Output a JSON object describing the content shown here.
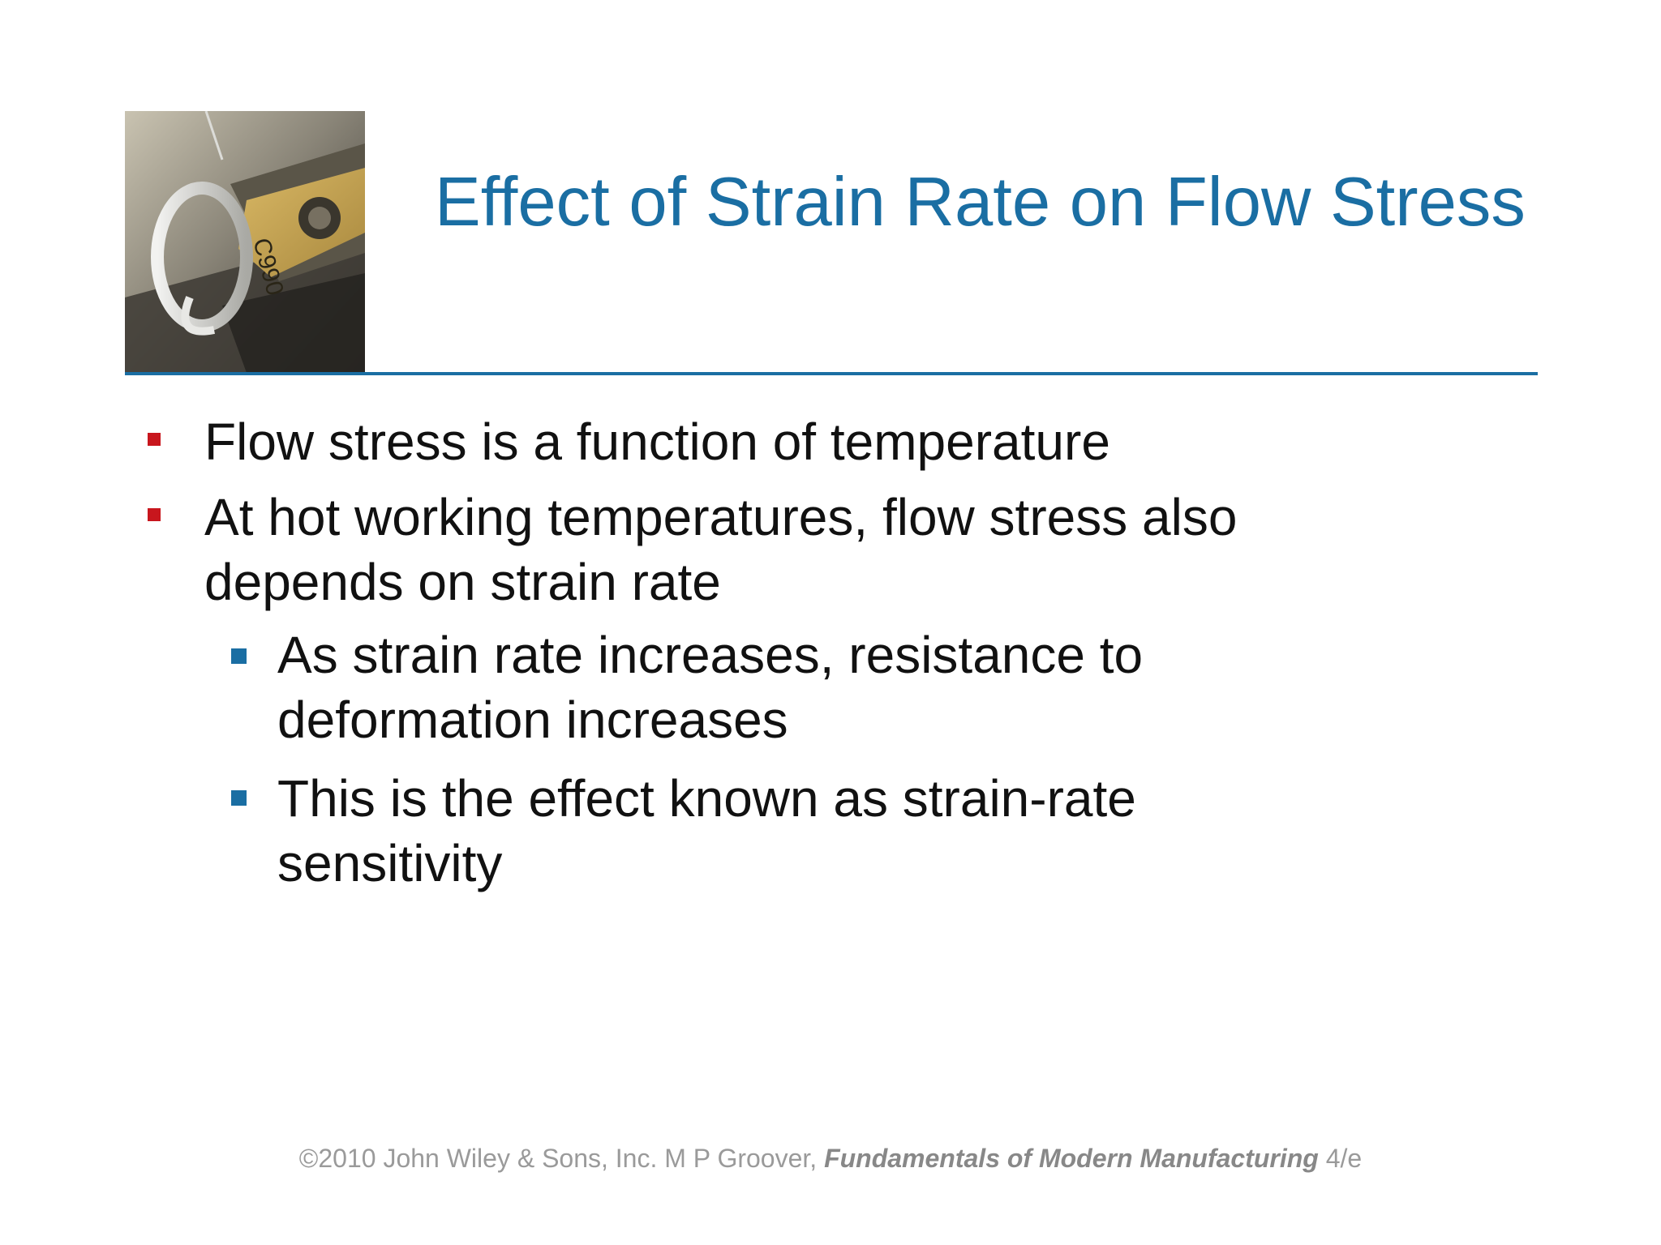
{
  "slide": {
    "title": "Effect of Strain Rate on Flow Stress",
    "photo_icon": "machining-tool-photo",
    "bullets": [
      {
        "level": 1,
        "text": "Flow stress is a function of temperature"
      },
      {
        "level": 1,
        "text": "At hot working temperatures, flow stress also depends on strain rate"
      },
      {
        "level": 2,
        "text": "As strain rate increases, resistance to deformation increases"
      },
      {
        "level": 2,
        "text": "This is the effect known as strain-rate sensitivity"
      }
    ],
    "footer": {
      "prefix": "©2010 John Wiley & Sons, Inc.  M P Groover, ",
      "book": "Fundamentals of Modern Manufacturing",
      "suffix": " 4/e"
    },
    "photo_label_text": "C990",
    "colors": {
      "title": "#1a6ea3",
      "level1_marker": "#c8161d",
      "level2_marker": "#1a6ea3",
      "footer": "#9a9a9a"
    }
  }
}
